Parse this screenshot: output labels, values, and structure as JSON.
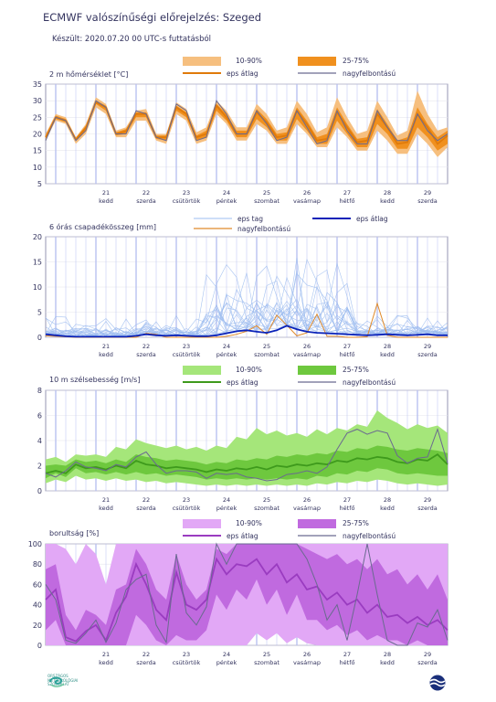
{
  "header": {
    "title": "ECMWF valószínűségi előrejelzés: Szeged",
    "subtitle": "Készült: 2020.07.20 00 UTC-s futtatásból"
  },
  "days": [
    {
      "num": "21",
      "name": "kedd"
    },
    {
      "num": "22",
      "name": "szerda"
    },
    {
      "num": "23",
      "name": "csütörtök"
    },
    {
      "num": "24",
      "name": "péntek"
    },
    {
      "num": "25",
      "name": "szombat"
    },
    {
      "num": "26",
      "name": "vasárnap"
    },
    {
      "num": "27",
      "name": "hétfő"
    },
    {
      "num": "28",
      "name": "kedd"
    },
    {
      "num": "29",
      "name": "szerda"
    }
  ],
  "colors": {
    "temp_outer": "#f6bf7f",
    "temp_inner": "#f0901e",
    "temp_mean": "#e07a0a",
    "precip_member": "#9dbcf0",
    "precip_mean": "#0a22b8",
    "precip_hires": "#e08a2a",
    "wind_outer": "#a5e67a",
    "wind_inner": "#6ec83e",
    "wind_mean": "#3e9a1c",
    "cloud_outer": "#e2a8f6",
    "cloud_inner": "#c06adf",
    "cloud_mean": "#9a3cc0",
    "hires": "#6a6a90",
    "vline": "#b8c0f0",
    "grid": "#e6e6ee"
  },
  "chart_data": [
    {
      "type": "area",
      "title": "2 m hőmérséklet [°C]",
      "ylim": [
        5,
        35
      ],
      "yticks": [
        5,
        10,
        15,
        20,
        25,
        30,
        35
      ],
      "legend": {
        "outer": "10-90%",
        "inner": "25-75%",
        "mean": "eps átlag",
        "hires": "nagyfelbontású"
      },
      "x_hours": [
        0,
        6,
        12,
        18,
        24,
        30,
        36,
        42,
        48,
        54,
        60,
        66,
        72,
        78,
        84,
        90,
        96,
        102,
        108,
        114,
        120,
        126,
        132,
        138,
        144,
        150,
        156,
        162,
        168,
        174,
        180,
        186,
        192,
        198,
        204,
        210,
        216,
        222,
        228,
        234,
        240
      ],
      "p10": [
        18,
        24,
        23,
        17,
        20,
        28,
        26,
        19,
        19,
        24,
        24,
        18,
        17,
        26,
        24,
        17,
        18,
        26,
        23,
        18,
        18,
        23,
        21,
        17,
        17,
        23,
        20,
        16,
        16,
        22,
        19,
        15,
        15,
        21,
        18,
        14,
        14,
        20,
        17,
        13,
        16
      ],
      "p25": [
        18.5,
        24.5,
        23.5,
        18,
        21,
        29,
        27,
        19.5,
        20,
        25,
        25,
        18.5,
        18,
        27,
        25,
        18,
        19,
        27,
        24,
        19,
        19,
        24.5,
        22,
        18,
        18,
        24.5,
        21,
        17,
        17,
        24,
        20,
        16,
        16,
        23,
        20,
        15.5,
        15.5,
        22,
        19,
        15,
        17
      ],
      "p75": [
        19.5,
        25.5,
        24.5,
        18.8,
        22.5,
        30,
        28.5,
        20.5,
        21.5,
        26.5,
        26.5,
        19.5,
        19.5,
        28.5,
        26.5,
        19.5,
        21,
        29,
        26,
        21,
        21,
        27.5,
        24.5,
        20,
        20.5,
        28,
        24,
        19,
        20,
        28,
        23,
        18.5,
        19,
        27.5,
        23,
        18,
        19,
        28,
        23,
        19,
        21
      ],
      "p90": [
        20,
        26,
        25,
        19,
        23,
        31,
        29,
        21,
        22,
        27,
        27.5,
        20,
        20,
        29.5,
        27.5,
        20.5,
        22,
        30,
        27,
        22,
        22,
        29,
        26,
        21,
        22,
        30,
        26,
        20.5,
        22,
        31,
        25,
        20,
        21,
        30,
        25,
        19.5,
        21,
        33,
        26,
        21,
        22
      ],
      "mean": [
        19,
        25,
        24,
        18.3,
        21.8,
        29.5,
        28,
        20,
        20.8,
        26,
        26,
        19,
        19,
        28,
        26,
        19,
        20,
        28.5,
        25,
        20,
        20,
        26.5,
        23.5,
        19,
        19.5,
        27,
        23,
        18,
        18.5,
        26.5,
        22,
        17.5,
        18,
        26,
        22,
        17,
        17.5,
        26,
        22,
        17,
        19.5
      ],
      "hires": [
        18,
        25,
        24,
        18,
        21,
        30,
        28,
        20,
        20,
        27,
        26,
        19,
        18,
        29,
        27,
        18,
        19,
        30,
        26,
        20,
        20,
        27,
        23,
        18,
        19,
        27,
        22,
        17,
        18,
        27,
        21,
        17,
        17,
        27,
        22,
        18,
        18,
        26,
        21,
        18,
        20
      ]
    },
    {
      "type": "line",
      "title": "6 órás csapadékösszeg [mm]",
      "ylim": [
        0,
        20
      ],
      "yticks": [
        0,
        5,
        10,
        15,
        20
      ],
      "legend": {
        "member": "eps tag",
        "mean": "eps átlag",
        "hires": "nagyfelbontású"
      },
      "x_hours": [
        0,
        6,
        12,
        18,
        24,
        30,
        36,
        42,
        48,
        54,
        60,
        66,
        72,
        78,
        84,
        90,
        96,
        102,
        108,
        114,
        120,
        126,
        132,
        138,
        144,
        150,
        156,
        162,
        168,
        174,
        180,
        186,
        192,
        198,
        204,
        210,
        216,
        222,
        228,
        234,
        240
      ],
      "mean": [
        0.6,
        0.4,
        0.2,
        0.1,
        0.1,
        0.1,
        0.1,
        0.1,
        0.1,
        0.3,
        0.6,
        0.4,
        0.3,
        0.4,
        0.3,
        0.2,
        0.2,
        0.4,
        0.8,
        1.2,
        1.4,
        1.1,
        0.9,
        1.4,
        2.3,
        1.6,
        1.1,
        0.9,
        0.8,
        0.7,
        0.6,
        0.5,
        0.4,
        0.5,
        0.6,
        0.5,
        0.4,
        0.5,
        0.6,
        0.4,
        0.4
      ],
      "hires": [
        0.3,
        0.2,
        0.1,
        0,
        0,
        0,
        0,
        0,
        0,
        0,
        0.8,
        0.6,
        0,
        0,
        0,
        0,
        0,
        0,
        0.2,
        0.6,
        1.2,
        2.3,
        0.6,
        4.4,
        2.4,
        0.3,
        0.9,
        4.6,
        0.2,
        0.2,
        0,
        0,
        0.1,
        6.7,
        0.4,
        0,
        0,
        0,
        0,
        0,
        0
      ]
    },
    {
      "type": "area",
      "title": "10 m szélsebesség [m/s]",
      "ylim": [
        0,
        8
      ],
      "yticks": [
        0,
        2,
        4,
        6,
        8
      ],
      "legend": {
        "outer": "10-90%",
        "inner": "25-75%",
        "mean": "eps átlag",
        "hires": "nagyfelbontású"
      },
      "x_hours": [
        0,
        6,
        12,
        18,
        24,
        30,
        36,
        42,
        48,
        54,
        60,
        66,
        72,
        78,
        84,
        90,
        96,
        102,
        108,
        114,
        120,
        126,
        132,
        138,
        144,
        150,
        156,
        162,
        168,
        174,
        180,
        186,
        192,
        198,
        204,
        210,
        216,
        222,
        228,
        234,
        240
      ],
      "p10": [
        0.6,
        0.9,
        0.7,
        1.2,
        0.9,
        1.0,
        0.8,
        1.0,
        0.8,
        0.9,
        0.7,
        0.8,
        0.6,
        0.7,
        0.6,
        0.5,
        0.4,
        0.5,
        0.4,
        0.5,
        0.4,
        0.5,
        0.4,
        0.5,
        0.4,
        0.5,
        0.4,
        0.6,
        0.5,
        0.7,
        0.6,
        0.8,
        0.7,
        0.9,
        0.8,
        0.6,
        0.5,
        0.6,
        0.5,
        0.4,
        0.5
      ],
      "p25": [
        1.0,
        1.4,
        1.1,
        1.8,
        1.4,
        1.5,
        1.3,
        1.5,
        1.3,
        1.5,
        1.3,
        1.4,
        1.2,
        1.3,
        1.2,
        1.1,
        0.9,
        1.0,
        0.9,
        1.0,
        0.9,
        1.0,
        0.9,
        1.0,
        0.9,
        1.0,
        0.9,
        1.2,
        1.1,
        1.4,
        1.3,
        1.6,
        1.5,
        1.8,
        1.7,
        1.4,
        1.3,
        1.4,
        1.3,
        1.2,
        1.2
      ],
      "p75": [
        2.0,
        2.1,
        2.0,
        2.5,
        2.3,
        2.4,
        2.2,
        2.5,
        2.3,
        2.9,
        2.7,
        2.6,
        2.4,
        2.5,
        2.4,
        2.3,
        2.1,
        2.3,
        2.2,
        2.5,
        2.4,
        2.6,
        2.5,
        2.8,
        2.7,
        2.9,
        2.8,
        3.0,
        2.9,
        3.2,
        3.1,
        3.4,
        3.3,
        3.6,
        3.5,
        3.3,
        3.2,
        3.4,
        3.3,
        3.2,
        3.0
      ],
      "p90": [
        2.5,
        2.7,
        2.3,
        2.9,
        2.8,
        2.9,
        2.7,
        3.5,
        3.3,
        4.1,
        3.8,
        3.6,
        3.4,
        3.6,
        3.3,
        3.5,
        3.2,
        3.6,
        3.4,
        4.3,
        4.1,
        5.0,
        4.5,
        4.8,
        4.4,
        4.6,
        4.3,
        4.9,
        4.5,
        5.0,
        4.8,
        5.3,
        5.1,
        6.4,
        5.8,
        5.4,
        4.9,
        5.3,
        5.0,
        5.2,
        4.6
      ],
      "mean": [
        1.4,
        1.6,
        1.4,
        2.1,
        1.8,
        1.9,
        1.7,
        2.0,
        1.8,
        2.4,
        2.1,
        2.0,
        1.8,
        1.9,
        1.8,
        1.7,
        1.5,
        1.7,
        1.6,
        1.8,
        1.7,
        1.9,
        1.7,
        2.0,
        1.9,
        2.1,
        2.0,
        2.2,
        2.1,
        2.4,
        2.3,
        2.6,
        2.5,
        2.7,
        2.6,
        2.3,
        2.2,
        2.5,
        2.4,
        2.9,
        2.1
      ],
      "hires": [
        1.4,
        1.1,
        1.6,
        2.3,
        1.9,
        1.8,
        1.6,
        2.1,
        1.9,
        2.7,
        3.1,
        2.1,
        1.4,
        1.6,
        1.6,
        1.5,
        1.0,
        1.4,
        1.3,
        1.4,
        1.1,
        1.0,
        0.8,
        0.9,
        1.3,
        1.4,
        1.6,
        1.4,
        1.9,
        3.3,
        4.6,
        4.9,
        4.5,
        4.8,
        4.6,
        2.8,
        2.2,
        2.6,
        2.7,
        4.9,
        2.2
      ]
    },
    {
      "type": "area",
      "title": "borultság [%]",
      "ylim": [
        0,
        100
      ],
      "yticks": [
        0,
        20,
        40,
        60,
        80,
        100
      ],
      "legend": {
        "outer": "10-90%",
        "inner": "25-75%",
        "mean": "eps átlag",
        "hires": "nagyfelbontású"
      },
      "x_hours": [
        0,
        6,
        12,
        18,
        24,
        30,
        36,
        42,
        48,
        54,
        60,
        66,
        72,
        78,
        84,
        90,
        96,
        102,
        108,
        114,
        120,
        126,
        132,
        138,
        144,
        150,
        156,
        162,
        168,
        174,
        180,
        186,
        192,
        198,
        204,
        210,
        216,
        222,
        228,
        234,
        240
      ],
      "p10": [
        0,
        0,
        0,
        0,
        0,
        0,
        0,
        0,
        0,
        0,
        0,
        0,
        0,
        0,
        0,
        0,
        0,
        0,
        0,
        0,
        0,
        12,
        5,
        12,
        2,
        8,
        2,
        0,
        0,
        0,
        0,
        0,
        0,
        0,
        0,
        0,
        0,
        0,
        0,
        0,
        0
      ],
      "p25": [
        15,
        25,
        0,
        0,
        0,
        0,
        0,
        0,
        0,
        30,
        20,
        5,
        0,
        10,
        5,
        5,
        15,
        50,
        35,
        55,
        45,
        65,
        40,
        55,
        30,
        50,
        25,
        25,
        15,
        20,
        10,
        15,
        5,
        10,
        5,
        5,
        0,
        5,
        0,
        0,
        0
      ],
      "p75": [
        75,
        80,
        30,
        15,
        35,
        30,
        20,
        55,
        60,
        95,
        80,
        55,
        45,
        90,
        60,
        45,
        55,
        95,
        90,
        100,
        100,
        100,
        100,
        100,
        100,
        100,
        95,
        90,
        85,
        90,
        80,
        85,
        75,
        85,
        70,
        75,
        60,
        70,
        55,
        70,
        45
      ],
      "p90": [
        100,
        100,
        95,
        80,
        100,
        90,
        60,
        100,
        100,
        100,
        100,
        100,
        100,
        100,
        100,
        100,
        100,
        100,
        100,
        100,
        100,
        100,
        100,
        100,
        100,
        100,
        100,
        100,
        100,
        100,
        100,
        100,
        100,
        100,
        100,
        100,
        100,
        100,
        100,
        100,
        100
      ],
      "mean": [
        45,
        55,
        8,
        4,
        14,
        20,
        5,
        32,
        48,
        80,
        60,
        35,
        25,
        72,
        40,
        35,
        45,
        85,
        70,
        80,
        78,
        85,
        70,
        80,
        62,
        70,
        55,
        58,
        45,
        52,
        40,
        45,
        32,
        40,
        28,
        30,
        22,
        28,
        20,
        25,
        15
      ],
      "hires": [
        60,
        45,
        5,
        2,
        12,
        25,
        3,
        22,
        55,
        65,
        70,
        20,
        3,
        90,
        32,
        20,
        38,
        100,
        80,
        100,
        100,
        100,
        100,
        100,
        100,
        100,
        85,
        60,
        25,
        40,
        5,
        50,
        100,
        50,
        5,
        0,
        0,
        22,
        18,
        35,
        5
      ]
    }
  ]
}
